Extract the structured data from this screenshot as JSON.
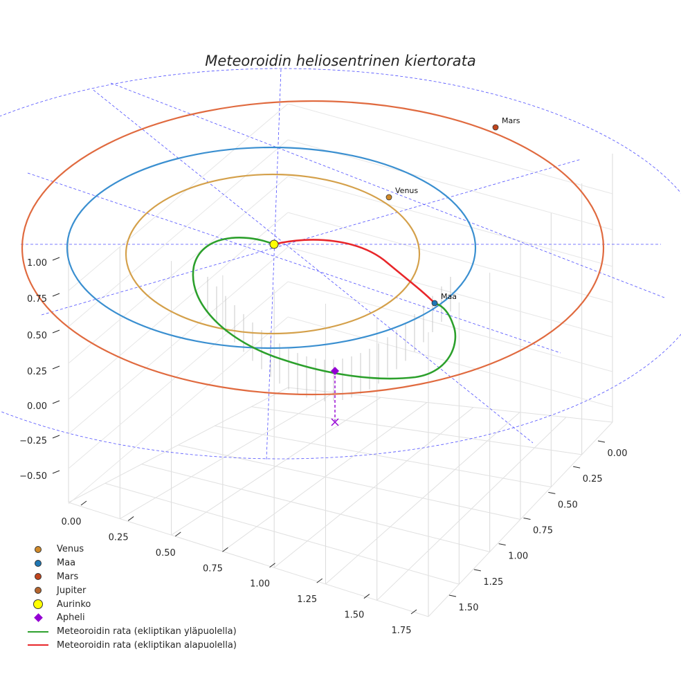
{
  "title": "Meteoroidin heliosentrinen kiertorata",
  "chart_data": {
    "type": "line",
    "title": "Meteoroidin heliosentrinen kiertorata",
    "projection": "3d",
    "x_ticks": [
      "0.00",
      "0.25",
      "0.50",
      "0.75",
      "1.00",
      "1.25",
      "1.50",
      "1.75"
    ],
    "y_ticks": [
      "0.00",
      "0.25",
      "0.50",
      "0.75",
      "1.00",
      "1.25",
      "1.50"
    ],
    "z_ticks": [
      "−0.50",
      "−0.25",
      "0.00",
      "0.25",
      "0.50",
      "0.75",
      "1.00"
    ],
    "xlim": [
      0,
      1.75
    ],
    "ylim": [
      0,
      1.5
    ],
    "zlim": [
      -0.5,
      1.0
    ],
    "grid": true,
    "legend_position": "bottom-left",
    "planets": [
      {
        "name": "Venus",
        "semi_major_axis_au": 0.72,
        "color": "#d4a04a",
        "marker_color": "#d08a2a"
      },
      {
        "name": "Maa",
        "semi_major_axis_au": 1.0,
        "color": "#3a8fd0",
        "marker_color": "#1f77b4"
      },
      {
        "name": "Mars",
        "semi_major_axis_au": 1.52,
        "color": "#e06a3f",
        "marker_color": "#c0451d"
      },
      {
        "name": "Jupiter",
        "color": "#b5652e",
        "marker_color": "#b5652e"
      }
    ],
    "sun": {
      "name": "Aurinko",
      "x": 0,
      "y": 0,
      "z": 0,
      "color": "#ffff00"
    },
    "meteoroid_orbit": {
      "above_ecliptic_label": "Meteoroidin rata (ekliptikan yläpuolella)",
      "below_ecliptic_label": "Meteoroidin rata (ekliptikan alapuolella)",
      "above_color": "#2ca02c",
      "below_color": "#e8262a"
    },
    "aphelion": {
      "name": "Apheli",
      "color": "#9400d3"
    }
  },
  "legend": [
    {
      "label": "Venus",
      "symbol": "dot",
      "color": "#d08a2a"
    },
    {
      "label": "Maa",
      "symbol": "dot",
      "color": "#1f77b4"
    },
    {
      "label": "Mars",
      "symbol": "dot",
      "color": "#c0451d"
    },
    {
      "label": "Jupiter",
      "symbol": "dot",
      "color": "#b5652e"
    },
    {
      "label": "Aurinko",
      "symbol": "sun",
      "color": "#ffff00"
    },
    {
      "label": "Apheli",
      "symbol": "diamond",
      "color": "#9400d3"
    },
    {
      "label": "Meteoroidin rata (ekliptikan yläpuolella)",
      "symbol": "line",
      "color": "#2ca02c"
    },
    {
      "label": "Meteoroidin rata (ekliptikan alapuolella)",
      "symbol": "line",
      "color": "#e8262a"
    }
  ]
}
